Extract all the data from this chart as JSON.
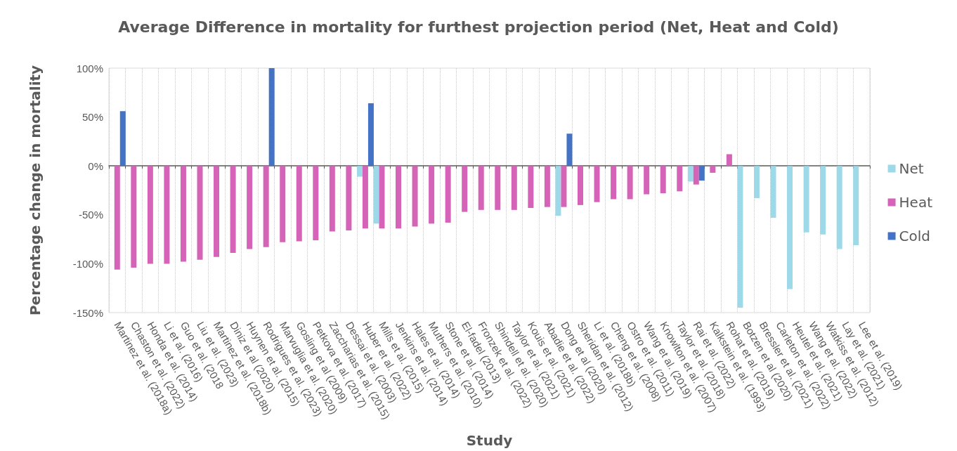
{
  "chart_data": {
    "type": "bar",
    "title": "Average Difference in mortality for furthest projection period (Net, Heat and Cold)",
    "xlabel": "Study",
    "ylabel": "Percentage change in mortality",
    "categories": [
      "Martinez et al. (2018a)",
      "Chaston et al. (2022)",
      "Honda et al. (2014)",
      "Li et al. (2016)",
      "Guo et al. (2018",
      "Liu et al. (2023)",
      "Martinez et al. (2018b)",
      "Diniz et al (2020)",
      "Huynen et al. (2015)",
      "Rodrigues et al. (2023)",
      "Marvuglia et al. (2020)",
      "Gosling et al (2009)",
      "Petkova et al. (2017)",
      "Zaccharias et al. (2015)",
      "Dessai et al. (2003)",
      "Huber et al. (2022)",
      "Mills et al. (2015)",
      "Jenkins et al. (2014)",
      "Hales et al. (2014)",
      "Muthers et al. (2010)",
      "Stone et al. (2014)",
      "El-fadel (2013)",
      "Fronzek et al. (2022)",
      "Shindell et al. (2020)",
      "Taylor et al. (2021)",
      "Kouis et al. (2021)",
      "Abadie et al. (2022)",
      "Dong et al (2020)",
      "Sheridan et al. (2012)",
      "Li et al. (2018b)",
      "Cheng et al. (2008)",
      "Ostro et al. (2011)",
      "Wang et al. (2019)",
      "Knowlton et al. (2007)",
      "Taylor et al. (2018)",
      "Rai et al. (2022)",
      "Kalkstein et al. (1993)",
      "Rohat et al. (2019)",
      "Botzen et al (2020)",
      "Bressler et al. (2021)",
      "Carleton et al. (2022)",
      "Heutel et al. (2021)",
      "Wang et al. (2022)",
      "Watkiss et al. (2012)",
      "Lay et al. (2021)",
      "Lee et al. (2019)"
    ],
    "series": [
      {
        "name": "Net",
        "color": "#9dd9e8",
        "values": [
          null,
          null,
          null,
          null,
          null,
          null,
          null,
          null,
          null,
          null,
          null,
          null,
          null,
          null,
          null,
          -11,
          -59,
          null,
          null,
          null,
          null,
          null,
          null,
          null,
          null,
          null,
          null,
          -51,
          null,
          null,
          null,
          null,
          null,
          null,
          null,
          -16,
          null,
          null,
          -145,
          -33,
          -53,
          -126,
          -68,
          -70,
          -85,
          -81
        ]
      },
      {
        "name": "Heat",
        "color": "#d564b8",
        "values": [
          -106,
          -104,
          -100,
          -100,
          -98,
          -96,
          -93,
          -89,
          -85,
          -83,
          -78,
          -77,
          -76,
          -67,
          -66,
          -64,
          -64,
          -64,
          -62,
          -59,
          -58,
          -47,
          -45,
          -45,
          -45,
          -43,
          -42,
          -42,
          -40,
          -37,
          -34,
          -34,
          -29,
          -28,
          -26,
          -19,
          -7,
          12,
          null,
          null,
          null,
          null,
          null,
          null,
          null,
          null
        ]
      },
      {
        "name": "Cold",
        "color": "#4472c4",
        "values": [
          56,
          null,
          null,
          null,
          null,
          null,
          null,
          null,
          null,
          100,
          null,
          null,
          null,
          null,
          null,
          64,
          null,
          null,
          null,
          null,
          null,
          null,
          null,
          null,
          null,
          null,
          null,
          33,
          null,
          null,
          null,
          null,
          null,
          null,
          null,
          -15,
          null,
          null,
          null,
          null,
          null,
          null,
          null,
          null,
          null,
          null
        ]
      }
    ],
    "ylim": [
      -150,
      100
    ],
    "yticks": [
      {
        "value": -150,
        "label": "-150%"
      },
      {
        "value": -100,
        "label": "-100%"
      },
      {
        "value": -50,
        "label": "-50%"
      },
      {
        "value": 0,
        "label": "0%"
      },
      {
        "value": 50,
        "label": "50%"
      },
      {
        "value": 100,
        "label": "100%"
      }
    ],
    "grid": "x",
    "legend": "right"
  }
}
